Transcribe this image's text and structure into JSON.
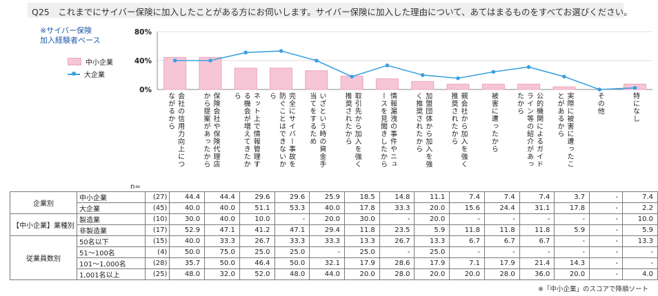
{
  "question": "Q25　これまでにサイバー保険に加入したことがある方にお伺いします。サイバー保険に加入した理由について、あてはまるものをすべてお選びください。",
  "base_note": "※サイバー保険\n 加入経験者ベース",
  "sort_note": "※「中小企業」のスコアで降順ソート",
  "n_label": "n=",
  "colors": {
    "bar": "#f7c6d6",
    "bar_border": "#e8a6bb",
    "line": "#3aa0e0"
  },
  "chart_data": {
    "type": "bar",
    "categories": [
      "会社の信用力向上につながるから",
      "保険会社や保険代理店から提案があったから",
      "ネット上で情報管理する機会が増えてきたから",
      "完全にサイバー事故を防ぐことはできないから",
      "いざという時の資金手当てをするため",
      "取引先から加入を強く推奨されたから",
      "情報漏洩の事件やニュースを見聞きしたから",
      "加盟団体から加入を強く推奨されたから",
      "親会社から加入を強く推奨されたから",
      "被害に遭ったから",
      "公的機関によるガイドライン等の紹介があったから",
      "実際に被害に遭ったことがあるから",
      "その他",
      "特になし"
    ],
    "series": [
      {
        "name": "中小企業",
        "kind": "bar",
        "values": [
          44.4,
          44.4,
          29.6,
          29.6,
          25.9,
          18.5,
          14.8,
          11.1,
          7.4,
          7.4,
          7.4,
          3.7,
          0,
          7.4
        ]
      },
      {
        "name": "大企業",
        "kind": "line",
        "values": [
          40.0,
          40.0,
          51.1,
          53.3,
          40.0,
          17.8,
          33.3,
          20.0,
          15.6,
          24.4,
          31.1,
          17.8,
          0,
          2.2
        ]
      }
    ],
    "yticks": [
      "0%",
      "40%",
      "80%"
    ],
    "ylim": [
      0,
      80
    ],
    "legend": "top-left"
  },
  "table": {
    "rows": [
      {
        "group": "企業別",
        "sub": "中小企業",
        "n": "(27)",
        "values": [
          "44.4",
          "44.4",
          "29.6",
          "29.6",
          "25.9",
          "18.5",
          "14.8",
          "11.1",
          "7.4",
          "7.4",
          "7.4",
          "3.7",
          "-",
          "7.4"
        ]
      },
      {
        "group": "",
        "sub": "大企業",
        "n": "(45)",
        "values": [
          "40.0",
          "40.0",
          "51.1",
          "53.3",
          "40.0",
          "17.8",
          "33.3",
          "20.0",
          "15.6",
          "24.4",
          "31.1",
          "17.8",
          "-",
          "2.2"
        ]
      },
      {
        "group": "【中小企業】業種別",
        "sub": "製造業",
        "n": "(10)",
        "values": [
          "30.0",
          "40.0",
          "10.0",
          "-",
          "20.0",
          "30.0",
          "-",
          "20.0",
          "-",
          "-",
          "-",
          "-",
          "-",
          "10.0"
        ]
      },
      {
        "group": "",
        "sub": "非製造業",
        "n": "(17)",
        "values": [
          "52.9",
          "47.1",
          "41.2",
          "47.1",
          "29.4",
          "11.8",
          "23.5",
          "5.9",
          "11.8",
          "11.8",
          "11.8",
          "5.9",
          "-",
          "5.9"
        ]
      },
      {
        "group": "従業員数別",
        "sub": "50名以下",
        "n": "(15)",
        "values": [
          "40.0",
          "33.3",
          "26.7",
          "33.3",
          "33.3",
          "13.3",
          "26.7",
          "13.3",
          "6.7",
          "6.7",
          "6.7",
          "-",
          "-",
          "13.3"
        ]
      },
      {
        "group": "",
        "sub": "51～100名",
        "n": "(4)",
        "values": [
          "50.0",
          "75.0",
          "25.0",
          "25.0",
          "-",
          "25.0",
          "-",
          "25.0",
          "-",
          "-",
          "-",
          "-",
          "-",
          "-"
        ]
      },
      {
        "group": "",
        "sub": "101～1,000名",
        "n": "(28)",
        "values": [
          "35.7",
          "50.0",
          "46.4",
          "50.0",
          "32.1",
          "17.9",
          "28.6",
          "17.9",
          "7.1",
          "17.9",
          "21.4",
          "14.3",
          "-",
          "-"
        ]
      },
      {
        "group": "",
        "sub": "1,001名以上",
        "n": "(25)",
        "values": [
          "48.0",
          "32.0",
          "52.0",
          "48.0",
          "44.0",
          "20.0",
          "28.0",
          "20.0",
          "20.0",
          "28.0",
          "36.0",
          "20.0",
          "-",
          "4.0"
        ]
      }
    ]
  }
}
